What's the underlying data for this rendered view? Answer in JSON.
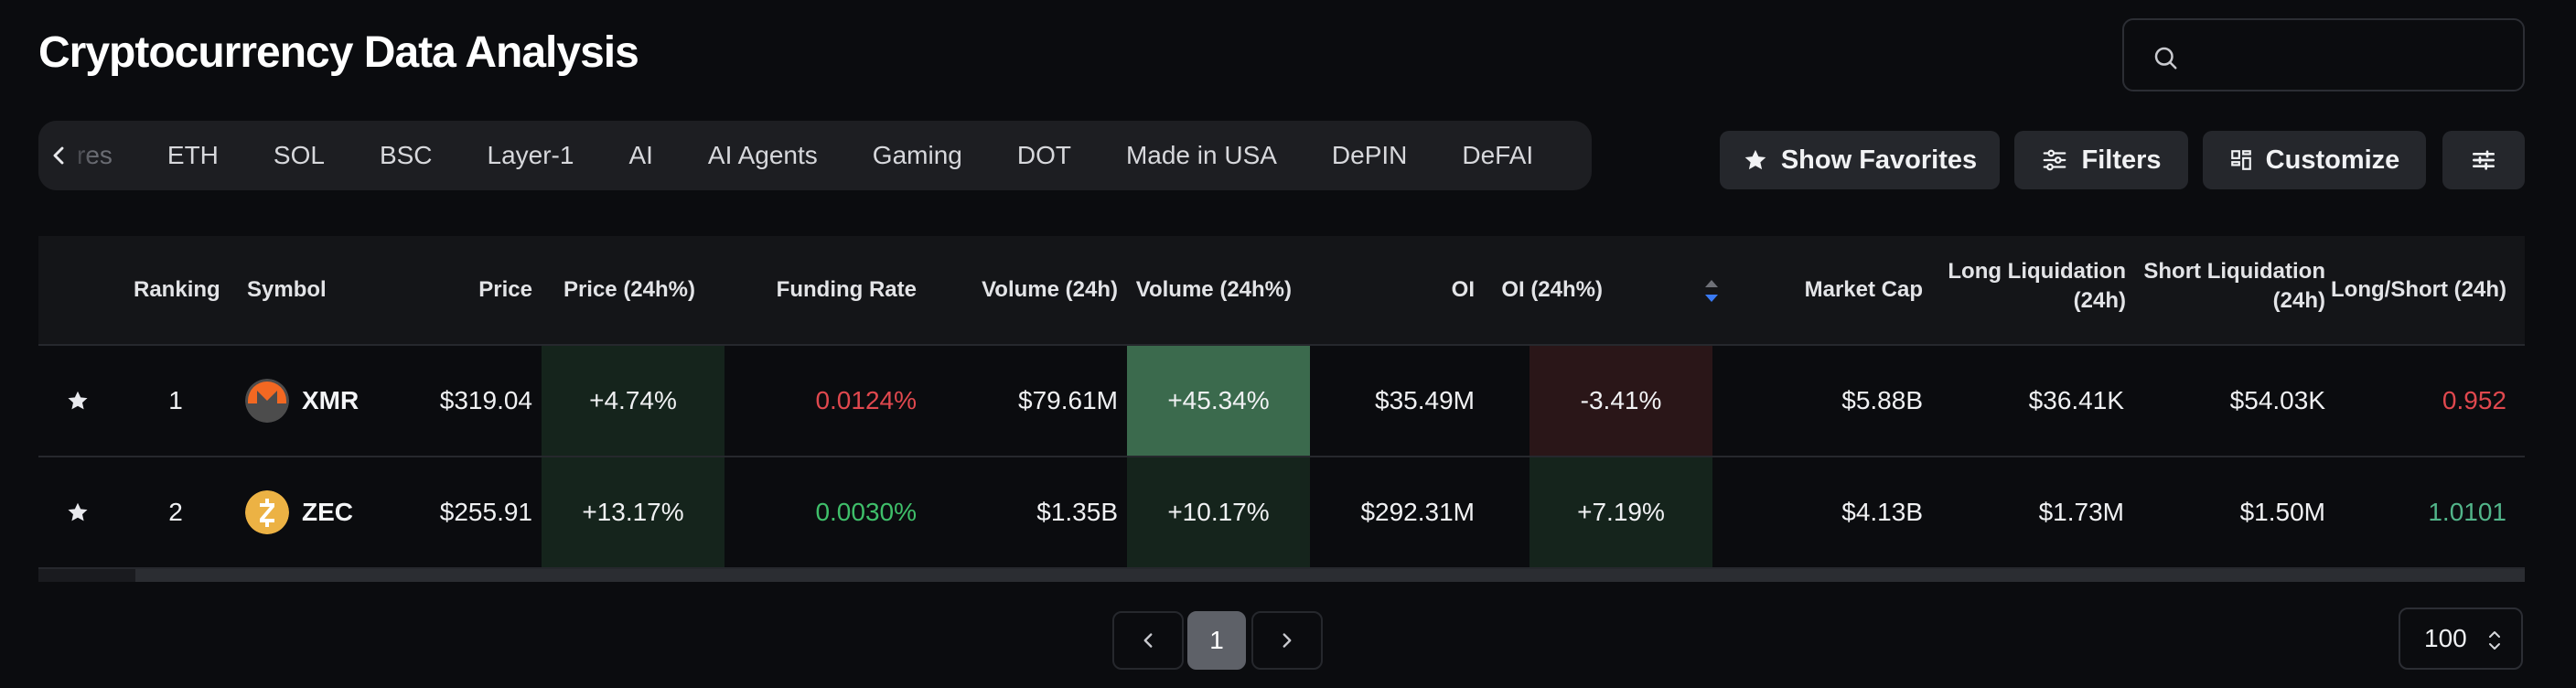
{
  "header": {
    "title": "Cryptocurrency Data Analysis"
  },
  "search": {
    "placeholder": "",
    "value": ""
  },
  "tabs": [
    {
      "label": "res",
      "partial": true
    },
    {
      "label": "ETH"
    },
    {
      "label": "SOL"
    },
    {
      "label": "BSC"
    },
    {
      "label": "Layer-1"
    },
    {
      "label": "AI"
    },
    {
      "label": "AI Agents"
    },
    {
      "label": "Gaming"
    },
    {
      "label": "DOT"
    },
    {
      "label": "Made in USA"
    },
    {
      "label": "DePIN"
    },
    {
      "label": "DeFAI"
    }
  ],
  "toolbar": {
    "favorites_label": "Show Favorites",
    "filters_label": "Filters",
    "customize_label": "Customize"
  },
  "table": {
    "headers": {
      "ranking": "Ranking",
      "symbol": "Symbol",
      "price": "Price",
      "price_change": "Price (24h%)",
      "funding_rate": "Funding Rate",
      "volume": "Volume (24h)",
      "volume_change": "Volume (24h%)",
      "oi": "OI",
      "oi_change": "OI (24h%)",
      "market_cap": "Market Cap",
      "long_liq_1": "Long Liquidation",
      "long_liq_2": "(24h)",
      "short_liq_1": "Short Liquidation",
      "short_liq_2": "(24h)",
      "long_short": "Long/Short (24h)"
    },
    "rows": [
      {
        "rank": "1",
        "symbol": "XMR",
        "price": "$319.04",
        "price_change": "+4.74%",
        "funding_rate": "0.0124%",
        "volume": "$79.61M",
        "volume_change": "+45.34%",
        "oi": "$35.49M",
        "oi_change": "-3.41%",
        "market_cap": "$5.88B",
        "long_liq": "$36.41K",
        "short_liq": "$54.03K",
        "long_short": "0.952"
      },
      {
        "rank": "2",
        "symbol": "ZEC",
        "price": "$255.91",
        "price_change": "+13.17%",
        "funding_rate": "0.0030%",
        "volume": "$1.35B",
        "volume_change": "+10.17%",
        "oi": "$292.31M",
        "oi_change": "+7.19%",
        "market_cap": "$4.13B",
        "long_liq": "$1.73M",
        "short_liq": "$1.50M",
        "long_short": "1.0101"
      }
    ]
  },
  "pagination": {
    "current_page": "1",
    "page_size": "100"
  },
  "colors": {
    "positive": "#3fbf6a",
    "negative": "#e0484e",
    "xmr_brand": "#f26822",
    "zec_brand": "#ecb244"
  }
}
